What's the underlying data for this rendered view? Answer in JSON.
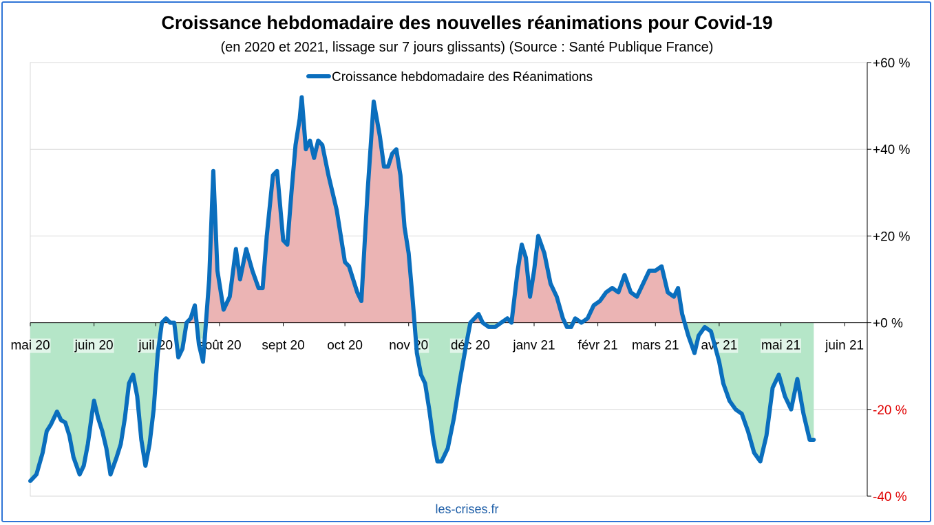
{
  "title": "Croissance hebdomadaire des nouvelles réanimations pour Covid-19",
  "subtitle": "(en 2020 et 2021, lissage sur 7 jours glissants) (Source : Santé Publique France)",
  "credit": "les-crises.fr",
  "colors": {
    "line": "#0a6ebd",
    "positive_fill": "#ebb4b4",
    "negative_fill": "#b5e6c8",
    "negative_tick": "#e00000",
    "grid": "#d9d9d9",
    "frame": "#2e74d6"
  },
  "chart_data": {
    "type": "area",
    "title": "Croissance hebdomadaire des nouvelles réanimations pour Covid-19",
    "legend": {
      "position": "top-center",
      "entries": [
        "Croissance hebdomadaire des Réanimations"
      ]
    },
    "y_axis": {
      "side": "right",
      "min": -40,
      "max": 60,
      "step": 20,
      "tick_labels": [
        "-40 %",
        "-20 %",
        "+0 %",
        "+20 %",
        "+40 %",
        "+60 %"
      ]
    },
    "x_axis": {
      "start": "2020-05-01",
      "end": "2021-06-12",
      "tick_labels": [
        "mai 20",
        "juin 20",
        "juil 20",
        "août 20",
        "sept 20",
        "oct 20",
        "nov 20",
        "déc 20",
        "janv 21",
        "févr 21",
        "mars 21",
        "avr 21",
        "mai 21",
        "juin 21"
      ],
      "tick_dates": [
        "2020-05-01",
        "2020-06-01",
        "2020-07-01",
        "2020-08-01",
        "2020-09-01",
        "2020-10-01",
        "2020-11-01",
        "2020-12-01",
        "2021-01-01",
        "2021-02-01",
        "2021-03-01",
        "2021-04-01",
        "2021-05-01",
        "2021-06-01"
      ]
    },
    "grid": true,
    "series": [
      {
        "name": "Croissance hebdomadaire des Réanimations",
        "points": [
          [
            "2020-05-01",
            -36.5
          ],
          [
            "2020-05-04",
            -35
          ],
          [
            "2020-05-07",
            -30
          ],
          [
            "2020-05-09",
            -25
          ],
          [
            "2020-05-11",
            -23.5
          ],
          [
            "2020-05-14",
            -20.5
          ],
          [
            "2020-05-16",
            -22.5
          ],
          [
            "2020-05-18",
            -23
          ],
          [
            "2020-05-20",
            -26
          ],
          [
            "2020-05-22",
            -31
          ],
          [
            "2020-05-25",
            -35
          ],
          [
            "2020-05-27",
            -33
          ],
          [
            "2020-05-29",
            -28
          ],
          [
            "2020-05-31",
            -21
          ],
          [
            "2020-06-01",
            -18
          ],
          [
            "2020-06-03",
            -22
          ],
          [
            "2020-06-05",
            -25
          ],
          [
            "2020-06-07",
            -29
          ],
          [
            "2020-06-09",
            -35
          ],
          [
            "2020-06-12",
            -31
          ],
          [
            "2020-06-14",
            -28
          ],
          [
            "2020-06-16",
            -22
          ],
          [
            "2020-06-18",
            -14
          ],
          [
            "2020-06-20",
            -12
          ],
          [
            "2020-06-22",
            -17
          ],
          [
            "2020-06-24",
            -27
          ],
          [
            "2020-06-26",
            -33
          ],
          [
            "2020-06-28",
            -28
          ],
          [
            "2020-06-30",
            -20
          ],
          [
            "2020-07-02",
            -7
          ],
          [
            "2020-07-04",
            0
          ],
          [
            "2020-07-06",
            1
          ],
          [
            "2020-07-08",
            0
          ],
          [
            "2020-07-10",
            0
          ],
          [
            "2020-07-12",
            -8
          ],
          [
            "2020-07-14",
            -6
          ],
          [
            "2020-07-16",
            0
          ],
          [
            "2020-07-18",
            1
          ],
          [
            "2020-07-20",
            4
          ],
          [
            "2020-07-22",
            -5
          ],
          [
            "2020-07-24",
            -9
          ],
          [
            "2020-07-27",
            10
          ],
          [
            "2020-07-29",
            35
          ],
          [
            "2020-07-31",
            12
          ],
          [
            "2020-08-03",
            3
          ],
          [
            "2020-08-06",
            6
          ],
          [
            "2020-08-09",
            17
          ],
          [
            "2020-08-11",
            10
          ],
          [
            "2020-08-14",
            17
          ],
          [
            "2020-08-17",
            12
          ],
          [
            "2020-08-20",
            8
          ],
          [
            "2020-08-22",
            8
          ],
          [
            "2020-08-24",
            20
          ],
          [
            "2020-08-27",
            34
          ],
          [
            "2020-08-29",
            35
          ],
          [
            "2020-09-01",
            19
          ],
          [
            "2020-09-03",
            18
          ],
          [
            "2020-09-05",
            30
          ],
          [
            "2020-09-07",
            41
          ],
          [
            "2020-09-09",
            47
          ],
          [
            "2020-09-10",
            52
          ],
          [
            "2020-09-12",
            40
          ],
          [
            "2020-09-14",
            42
          ],
          [
            "2020-09-16",
            38
          ],
          [
            "2020-09-18",
            42
          ],
          [
            "2020-09-20",
            41
          ],
          [
            "2020-09-23",
            34
          ],
          [
            "2020-09-27",
            26
          ],
          [
            "2020-10-01",
            14
          ],
          [
            "2020-10-03",
            13
          ],
          [
            "2020-10-05",
            10
          ],
          [
            "2020-10-07",
            7
          ],
          [
            "2020-10-09",
            5
          ],
          [
            "2020-10-12",
            30
          ],
          [
            "2020-10-15",
            51
          ],
          [
            "2020-10-18",
            43
          ],
          [
            "2020-10-20",
            36
          ],
          [
            "2020-10-22",
            36
          ],
          [
            "2020-10-24",
            39
          ],
          [
            "2020-10-26",
            40
          ],
          [
            "2020-10-28",
            34
          ],
          [
            "2020-10-30",
            22
          ],
          [
            "2020-11-01",
            16
          ],
          [
            "2020-11-03",
            5
          ],
          [
            "2020-11-05",
            -7
          ],
          [
            "2020-11-07",
            -12
          ],
          [
            "2020-11-09",
            -14
          ],
          [
            "2020-11-11",
            -20
          ],
          [
            "2020-11-13",
            -27
          ],
          [
            "2020-11-15",
            -32
          ],
          [
            "2020-11-17",
            -32
          ],
          [
            "2020-11-20",
            -29
          ],
          [
            "2020-11-23",
            -22
          ],
          [
            "2020-11-26",
            -13
          ],
          [
            "2020-11-29",
            -5
          ],
          [
            "2020-12-01",
            0
          ],
          [
            "2020-12-03",
            1
          ],
          [
            "2020-12-05",
            2
          ],
          [
            "2020-12-07",
            0
          ],
          [
            "2020-12-10",
            -1
          ],
          [
            "2020-12-13",
            -1
          ],
          [
            "2020-12-16",
            0
          ],
          [
            "2020-12-19",
            1
          ],
          [
            "2020-12-21",
            0
          ],
          [
            "2020-12-24",
            12
          ],
          [
            "2020-12-26",
            18
          ],
          [
            "2020-12-28",
            15
          ],
          [
            "2020-12-30",
            6
          ],
          [
            "2021-01-01",
            12
          ],
          [
            "2021-01-03",
            20
          ],
          [
            "2021-01-06",
            16
          ],
          [
            "2021-01-09",
            9
          ],
          [
            "2021-01-12",
            6
          ],
          [
            "2021-01-15",
            1
          ],
          [
            "2021-01-17",
            -1
          ],
          [
            "2021-01-19",
            -1
          ],
          [
            "2021-01-21",
            1
          ],
          [
            "2021-01-24",
            0
          ],
          [
            "2021-01-27",
            1
          ],
          [
            "2021-01-30",
            4
          ],
          [
            "2021-02-02",
            5
          ],
          [
            "2021-02-05",
            7
          ],
          [
            "2021-02-08",
            8
          ],
          [
            "2021-02-11",
            7
          ],
          [
            "2021-02-14",
            11
          ],
          [
            "2021-02-17",
            7
          ],
          [
            "2021-02-20",
            6
          ],
          [
            "2021-02-23",
            9
          ],
          [
            "2021-02-26",
            12
          ],
          [
            "2021-03-01",
            12
          ],
          [
            "2021-03-04",
            13
          ],
          [
            "2021-03-07",
            7
          ],
          [
            "2021-03-10",
            6
          ],
          [
            "2021-03-12",
            8
          ],
          [
            "2021-03-14",
            2
          ],
          [
            "2021-03-17",
            -3
          ],
          [
            "2021-03-20",
            -7
          ],
          [
            "2021-03-22",
            -3
          ],
          [
            "2021-03-25",
            -1
          ],
          [
            "2021-03-28",
            -2
          ],
          [
            "2021-04-01",
            -9
          ],
          [
            "2021-04-03",
            -14
          ],
          [
            "2021-04-06",
            -18
          ],
          [
            "2021-04-09",
            -20
          ],
          [
            "2021-04-12",
            -21
          ],
          [
            "2021-04-15",
            -25
          ],
          [
            "2021-04-18",
            -30
          ],
          [
            "2021-04-21",
            -32
          ],
          [
            "2021-04-24",
            -26
          ],
          [
            "2021-04-27",
            -15
          ],
          [
            "2021-04-30",
            -12
          ],
          [
            "2021-05-03",
            -17
          ],
          [
            "2021-05-06",
            -20
          ],
          [
            "2021-05-09",
            -13
          ],
          [
            "2021-05-12",
            -21
          ],
          [
            "2021-05-15",
            -27
          ],
          [
            "2021-05-17",
            -27
          ]
        ]
      }
    ]
  }
}
